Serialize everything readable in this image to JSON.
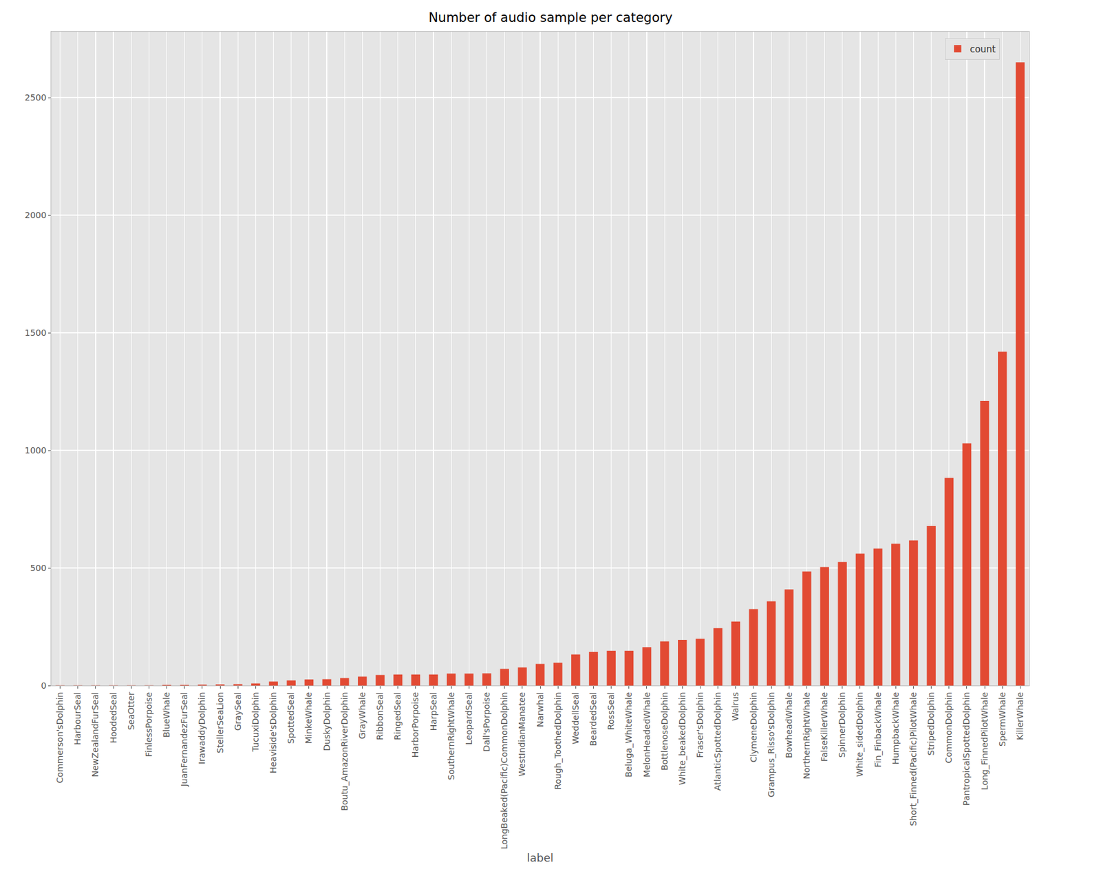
{
  "chart_data": {
    "type": "bar",
    "title": "Number of audio sample per category",
    "xlabel": "label",
    "categories": [
      "Commerson'sDolphin",
      "HarbourSeal",
      "NewZealandFurSeal",
      "HoodedSeal",
      "SeaOtter",
      "FinlessPorpoise",
      "BlueWhale",
      "JuanFernandezFurSeal",
      "IrawaddyDolphin",
      "StellerSeaLion",
      "GraySeal",
      "TucuxiDolphin",
      "Heaviside'sDolphin",
      "SpottedSeal",
      "MinkeWhale",
      "DuskyDolphin",
      "Boutu_AmazonRiverDolphin",
      "GrayWhale",
      "RibbonSeal",
      "RingedSeal",
      "HarborPorpoise",
      "HarpSeal",
      "SouthernRightWhale",
      "LeopardSeal",
      "Dall'sPorpoise",
      "LongBeaked(Pacific)CommonDolphin",
      "WestIndianManatee",
      "Narwhal",
      "Rough_ToothedDolphin",
      "WeddellSeal",
      "BeardedSeal",
      "RossSeal",
      "Beluga_WhiteWhale",
      "MelonHeadedWhale",
      "BottlenoseDolphin",
      "White_beakedDolphin",
      "Fraser'sDolphin",
      "AtlanticSpottedDolphin",
      "Walrus",
      "ClymeneDolphin",
      "Grampus_Risso'sDolphin",
      "BowheadWhale",
      "NorthernRightWhale",
      "FalseKillerWhale",
      "SpinnerDolphin",
      "White_sidedDolphin",
      "Fin_FinbackWhale",
      "HumpbackWhale",
      "Short_Finned(Pacific)PilotWhale",
      "StripedDolphin",
      "CommonDolphin",
      "PantropicalSpottedDolphin",
      "Long_FinnedPilotWhale",
      "SpermWhale",
      "KillerWhale"
    ],
    "series": [
      {
        "name": "count",
        "color": "#E24A33",
        "values": [
          1,
          1,
          1,
          1,
          1,
          1,
          3,
          3,
          4,
          5,
          6,
          9,
          17,
          22,
          26,
          27,
          32,
          38,
          45,
          47,
          47,
          47,
          51,
          51,
          52,
          71,
          77,
          92,
          97,
          132,
          143,
          148,
          148,
          163,
          188,
          194,
          199,
          244,
          272,
          325,
          358,
          409,
          485,
          504,
          525,
          561,
          582,
          603,
          617,
          679,
          883,
          1030,
          1210,
          1420,
          2650
        ]
      }
    ],
    "ylim": [
      0,
      2780
    ],
    "yticks": [
      0,
      500,
      1000,
      1500,
      2000,
      2500
    ],
    "grid": true,
    "legend": "upper right"
  }
}
